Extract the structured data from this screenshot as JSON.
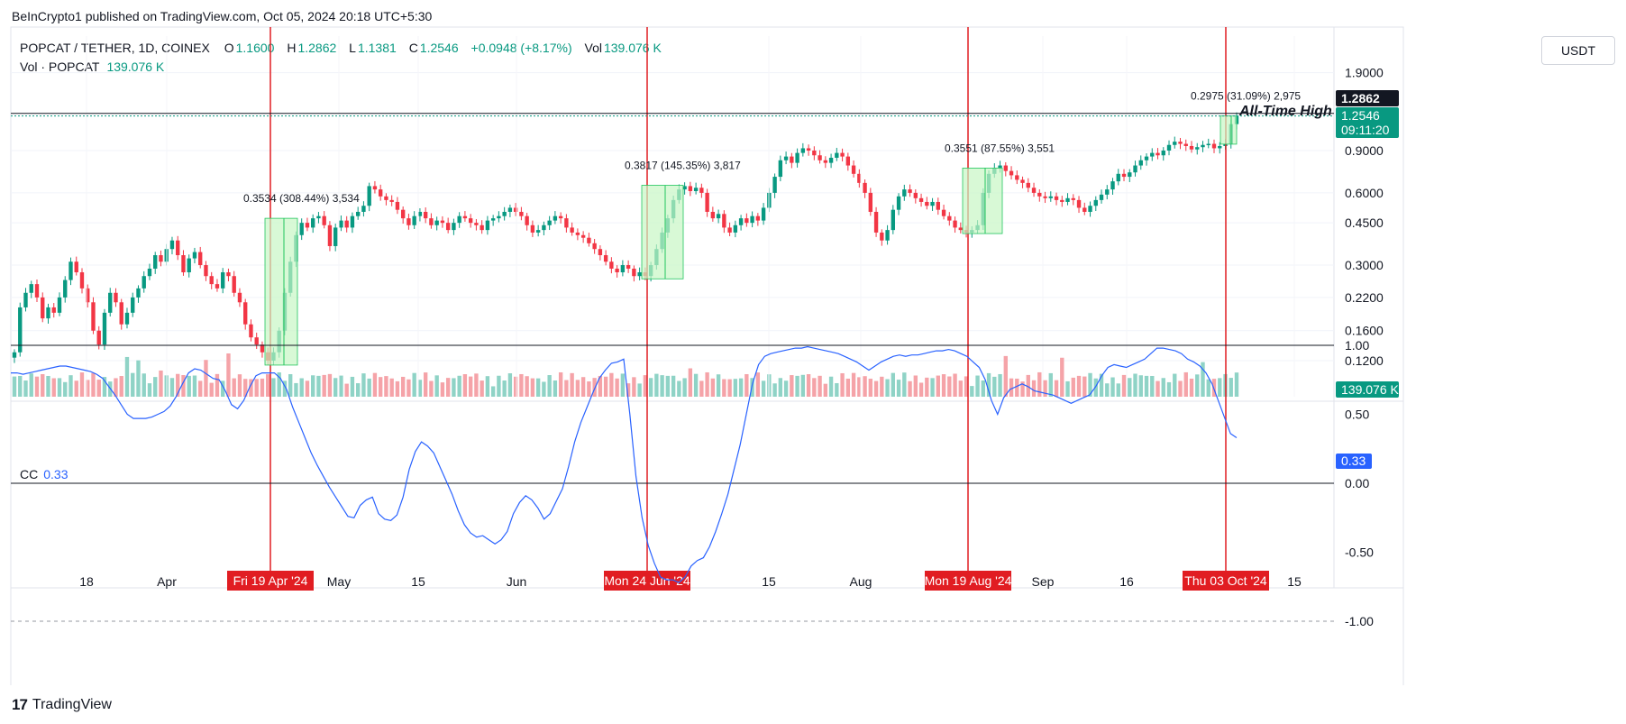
{
  "header": {
    "published": "BeInCrypto1 published on TradingView.com, Oct 05, 2024 20:18 UTC+5:30",
    "symbol": "POPCAT / TETHER, 1D, COINEX",
    "ohlc": [
      {
        "k": "O",
        "v": "1.1600"
      },
      {
        "k": "H",
        "v": "1.2862"
      },
      {
        "k": "L",
        "v": "1.1381"
      },
      {
        "k": "C",
        "v": "1.2546"
      },
      {
        "k": "",
        "v": "+0.0948 (+8.17%)"
      },
      {
        "k": "Vol",
        "v": "139.076 K"
      }
    ],
    "vol_label": "Vol · POPCAT",
    "vol_value": "139.076 K",
    "currency": "USDT"
  },
  "indicator": {
    "label": "CC",
    "value": "0.33"
  },
  "footer": {
    "brand": "TradingView",
    "logo": "17"
  },
  "colors": {
    "up": "#089981",
    "down": "#f23645",
    "vol_up": "#8fd3c6",
    "vol_down": "#f5a3a8",
    "cc_line": "#2962ff",
    "event_line": "#e11d22",
    "box": "#c8f7c5"
  },
  "chart_data": [
    {
      "type": "candlestick",
      "y_scale": "log",
      "y_ticks": [
        "1.9000",
        "0.9000",
        "0.6000",
        "0.4500",
        "0.3000",
        "0.2200",
        "0.1600",
        "0.1200"
      ],
      "x_ticks": [
        "18",
        "Apr",
        "May",
        "15",
        "Jun",
        "15",
        "Aug",
        "Sep",
        "16",
        "15"
      ],
      "price_labels": {
        "high": "1.2862",
        "last": "1.2546",
        "countdown": "09:11:20",
        "volume": "139.076 K"
      },
      "annotation": "All-Time High",
      "events": [
        {
          "label": "Fri 19 Apr '24",
          "measure": "0.3534 (308.44%) 3,534",
          "from": 0.115,
          "to": 0.47
        },
        {
          "label": "Mon 24 Jun '24",
          "measure": "0.3817 (145.35%) 3,817",
          "from": 0.263,
          "to": 0.645
        },
        {
          "label": "Mon 19 Aug '24",
          "measure": "0.3551 (87.55%) 3,551",
          "from": 0.406,
          "to": 0.761
        },
        {
          "label": "Thu 03 Oct '24",
          "measure": "0.2975 (31.09%) 2,975",
          "from": 0.957,
          "to": 1.2546
        }
      ],
      "close_series": [
        0.13,
        0.2,
        0.23,
        0.25,
        0.22,
        0.18,
        0.2,
        0.19,
        0.22,
        0.26,
        0.31,
        0.28,
        0.24,
        0.21,
        0.16,
        0.14,
        0.19,
        0.23,
        0.21,
        0.17,
        0.19,
        0.22,
        0.24,
        0.27,
        0.29,
        0.33,
        0.31,
        0.35,
        0.38,
        0.33,
        0.28,
        0.32,
        0.34,
        0.3,
        0.27,
        0.25,
        0.24,
        0.28,
        0.27,
        0.23,
        0.21,
        0.17,
        0.15,
        0.14,
        0.13,
        0.12,
        0.13,
        0.16,
        0.23,
        0.31,
        0.4,
        0.45,
        0.43,
        0.47,
        0.48,
        0.44,
        0.36,
        0.43,
        0.46,
        0.43,
        0.48,
        0.5,
        0.53,
        0.64,
        0.62,
        0.58,
        0.56,
        0.55,
        0.51,
        0.47,
        0.44,
        0.48,
        0.5,
        0.47,
        0.44,
        0.46,
        0.45,
        0.42,
        0.45,
        0.48,
        0.47,
        0.45,
        0.44,
        0.42,
        0.46,
        0.47,
        0.48,
        0.5,
        0.52,
        0.5,
        0.48,
        0.44,
        0.41,
        0.42,
        0.44,
        0.46,
        0.48,
        0.47,
        0.43,
        0.41,
        0.4,
        0.39,
        0.37,
        0.35,
        0.33,
        0.31,
        0.29,
        0.28,
        0.3,
        0.29,
        0.27,
        0.28,
        0.27,
        0.3,
        0.35,
        0.41,
        0.47,
        0.56,
        0.62,
        0.64,
        0.61,
        0.63,
        0.6,
        0.5,
        0.47,
        0.49,
        0.43,
        0.41,
        0.44,
        0.47,
        0.45,
        0.48,
        0.46,
        0.52,
        0.6,
        0.7,
        0.82,
        0.85,
        0.8,
        0.88,
        0.92,
        0.9,
        0.86,
        0.82,
        0.8,
        0.84,
        0.88,
        0.85,
        0.78,
        0.72,
        0.66,
        0.6,
        0.5,
        0.41,
        0.38,
        0.42,
        0.51,
        0.58,
        0.62,
        0.6,
        0.57,
        0.55,
        0.53,
        0.55,
        0.51,
        0.48,
        0.46,
        0.43,
        0.42,
        0.41,
        0.42,
        0.44,
        0.6,
        0.72,
        0.76,
        0.78,
        0.74,
        0.71,
        0.68,
        0.66,
        0.63,
        0.6,
        0.58,
        0.57,
        0.58,
        0.56,
        0.55,
        0.57,
        0.56,
        0.52,
        0.5,
        0.53,
        0.56,
        0.59,
        0.62,
        0.67,
        0.72,
        0.7,
        0.73,
        0.78,
        0.82,
        0.85,
        0.88,
        0.86,
        0.9,
        0.95,
        0.98,
        0.96,
        0.94,
        0.91,
        0.93,
        0.95,
        0.96,
        0.92,
        0.94,
        0.96,
        1.16,
        1.2546
      ],
      "cc_series": [
        0.8,
        0.8,
        0.79,
        0.8,
        0.81,
        0.82,
        0.83,
        0.84,
        0.85,
        0.85,
        0.84,
        0.83,
        0.82,
        0.81,
        0.79,
        0.76,
        0.7,
        0.64,
        0.57,
        0.5,
        0.47,
        0.47,
        0.47,
        0.48,
        0.5,
        0.52,
        0.56,
        0.63,
        0.72,
        0.8,
        0.83,
        0.82,
        0.79,
        0.76,
        0.75,
        0.67,
        0.57,
        0.54,
        0.6,
        0.7,
        0.78,
        0.8,
        0.8,
        0.8,
        0.76,
        0.68,
        0.55,
        0.44,
        0.33,
        0.22,
        0.13,
        0.05,
        -0.03,
        -0.1,
        -0.17,
        -0.24,
        -0.25,
        -0.16,
        -0.12,
        -0.1,
        -0.22,
        -0.26,
        -0.27,
        -0.23,
        -0.1,
        0.1,
        0.23,
        0.3,
        0.27,
        0.22,
        0.12,
        0.02,
        -0.08,
        -0.2,
        -0.3,
        -0.36,
        -0.39,
        -0.38,
        -0.41,
        -0.44,
        -0.41,
        -0.35,
        -0.22,
        -0.14,
        -0.09,
        -0.12,
        -0.18,
        -0.26,
        -0.22,
        -0.13,
        -0.04,
        0.12,
        0.3,
        0.44,
        0.55,
        0.66,
        0.76,
        0.82,
        0.87,
        0.88,
        0.9,
        0.5,
        0.05,
        -0.25,
        -0.45,
        -0.58,
        -0.68,
        -0.7,
        -0.7,
        -0.72,
        -0.68,
        -0.6,
        -0.56,
        -0.54,
        -0.46,
        -0.35,
        -0.22,
        -0.08,
        0.1,
        0.28,
        0.5,
        0.72,
        0.86,
        0.92,
        0.94,
        0.95,
        0.96,
        0.97,
        0.98,
        0.98,
        0.99,
        0.98,
        0.97,
        0.96,
        0.95,
        0.94,
        0.92,
        0.9,
        0.88,
        0.85,
        0.82,
        0.85,
        0.88,
        0.9,
        0.92,
        0.93,
        0.92,
        0.93,
        0.93,
        0.94,
        0.95,
        0.96,
        0.96,
        0.97,
        0.96,
        0.94,
        0.92,
        0.88,
        0.84,
        0.75,
        0.6,
        0.5,
        0.62,
        0.68,
        0.7,
        0.72,
        0.7,
        0.67,
        0.66,
        0.65,
        0.64,
        0.62,
        0.6,
        0.58,
        0.6,
        0.62,
        0.64,
        0.7,
        0.78,
        0.84,
        0.86,
        0.85,
        0.84,
        0.86,
        0.88,
        0.9,
        0.94,
        0.98,
        0.98,
        0.97,
        0.96,
        0.94,
        0.9,
        0.88,
        0.85,
        0.8,
        0.72,
        0.6,
        0.48,
        0.36,
        0.33
      ],
      "cc_ticks": [
        "1.00",
        "0.50",
        "0.00",
        "-0.50",
        "-1.00"
      ]
    }
  ]
}
